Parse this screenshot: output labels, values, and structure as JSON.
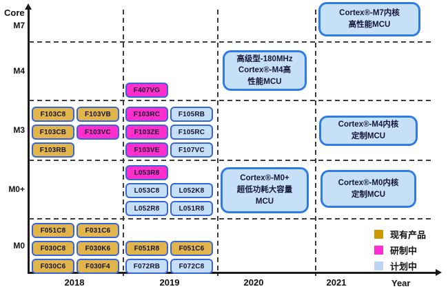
{
  "chart_data": {
    "type": "table",
    "title": "",
    "xlabel": "Year",
    "ylabel": "Core",
    "rows": [
      "M7",
      "M4",
      "M3",
      "M0+",
      "M0"
    ],
    "columns": [
      "2018",
      "2019",
      "2020",
      "2021"
    ],
    "status_colors": {
      "existing": "#E2B44C",
      "developing": "#FF2ECC",
      "planned": "#C6DFF8",
      "chip_border": "#3565D8",
      "annotation_fill": "#C6E0F8",
      "annotation_border": "#2D7BE5"
    },
    "products": [
      {
        "label": "F103C8",
        "status": "existing",
        "core": "M3",
        "year": "2018",
        "r": 0,
        "c": 0
      },
      {
        "label": "F103VB",
        "status": "existing",
        "core": "M3",
        "year": "2018",
        "r": 0,
        "c": 1
      },
      {
        "label": "F103CB",
        "status": "existing",
        "core": "M3",
        "year": "2018",
        "r": 1,
        "c": 0
      },
      {
        "label": "F103VC",
        "status": "developing",
        "core": "M3",
        "year": "2018",
        "r": 1,
        "c": 1
      },
      {
        "label": "F103RB",
        "status": "existing",
        "core": "M3",
        "year": "2018",
        "r": 2,
        "c": 0
      },
      {
        "label": "F407VG",
        "status": "developing",
        "core": "M4",
        "year": "2019",
        "r": 0,
        "c": 0
      },
      {
        "label": "F103RC",
        "status": "developing",
        "core": "M3",
        "year": "2019",
        "r": 0,
        "c": 0
      },
      {
        "label": "F105RB",
        "status": "planned",
        "core": "M3",
        "year": "2019",
        "r": 0,
        "c": 1
      },
      {
        "label": "F103ZE",
        "status": "developing",
        "core": "M3",
        "year": "2019",
        "r": 1,
        "c": 0
      },
      {
        "label": "F105RC",
        "status": "planned",
        "core": "M3",
        "year": "2019",
        "r": 1,
        "c": 1
      },
      {
        "label": "F103VE",
        "status": "developing",
        "core": "M3",
        "year": "2019",
        "r": 2,
        "c": 0
      },
      {
        "label": "F107VC",
        "status": "planned",
        "core": "M3",
        "year": "2019",
        "r": 2,
        "c": 1
      },
      {
        "label": "L053R8",
        "status": "developing",
        "core": "M0+",
        "year": "2019",
        "r": 0,
        "c": 0
      },
      {
        "label": "L053C8",
        "status": "planned",
        "core": "M0+",
        "year": "2019",
        "r": 1,
        "c": 0
      },
      {
        "label": "L052K8",
        "status": "planned",
        "core": "M0+",
        "year": "2019",
        "r": 1,
        "c": 1
      },
      {
        "label": "L052R8",
        "status": "planned",
        "core": "M0+",
        "year": "2019",
        "r": 2,
        "c": 0
      },
      {
        "label": "L051R8",
        "status": "planned",
        "core": "M0+",
        "year": "2019",
        "r": 2,
        "c": 1
      },
      {
        "label": "F051C8",
        "status": "existing",
        "core": "M0",
        "year": "2018",
        "r": 0,
        "c": 0
      },
      {
        "label": "F031C6",
        "status": "existing",
        "core": "M0",
        "year": "2018",
        "r": 0,
        "c": 1
      },
      {
        "label": "F030C8",
        "status": "existing",
        "core": "M0",
        "year": "2018",
        "r": 1,
        "c": 0
      },
      {
        "label": "F030K6",
        "status": "existing",
        "core": "M0",
        "year": "2018",
        "r": 1,
        "c": 1
      },
      {
        "label": "F030C6",
        "status": "existing",
        "core": "M0",
        "year": "2018",
        "r": 2,
        "c": 0
      },
      {
        "label": "F030F4",
        "status": "existing",
        "core": "M0",
        "year": "2018",
        "r": 2,
        "c": 1
      },
      {
        "label": "F051R8",
        "status": "existing",
        "core": "M0",
        "year": "2019",
        "r": 0,
        "c": 0
      },
      {
        "label": "F051C6",
        "status": "existing",
        "core": "M0",
        "year": "2019",
        "r": 0,
        "c": 1
      },
      {
        "label": "F072RB",
        "status": "planned",
        "core": "M0",
        "year": "2019",
        "r": 1,
        "c": 0
      },
      {
        "label": "F072C8",
        "status": "planned",
        "core": "M0",
        "year": "2019",
        "r": 1,
        "c": 1
      }
    ],
    "annotations": [
      {
        "id": "m7-2021",
        "core": "M7",
        "year": "2021",
        "lines": [
          "Cortex®-M7内核",
          "高性能MCU"
        ]
      },
      {
        "id": "m4-2020",
        "core": "M4",
        "year": "2020",
        "lines": [
          "高级型-180MHz",
          "Cortex®-M4高",
          "性能MCU"
        ]
      },
      {
        "id": "m3-2021",
        "core": "M3",
        "year": "2021",
        "lines": [
          "Cortex®-M4内核",
          "定制MCU"
        ]
      },
      {
        "id": "m0plus-2020",
        "core": "M0+",
        "year": "2020",
        "lines": [
          "Cortex®-M0+",
          "超低功耗大容量",
          "MCU"
        ]
      },
      {
        "id": "m0plus-2021",
        "core": "M0+",
        "year": "2021",
        "lines": [
          "Cortex®-M0内核",
          "定制MCU"
        ]
      }
    ],
    "legend": [
      {
        "label": "现有产品",
        "status": "existing",
        "color": "#CC9800"
      },
      {
        "label": "研制中",
        "status": "developing",
        "color": "#FF2ED4"
      },
      {
        "label": "计划中",
        "status": "planned",
        "color": "#BCD6F2"
      }
    ]
  }
}
